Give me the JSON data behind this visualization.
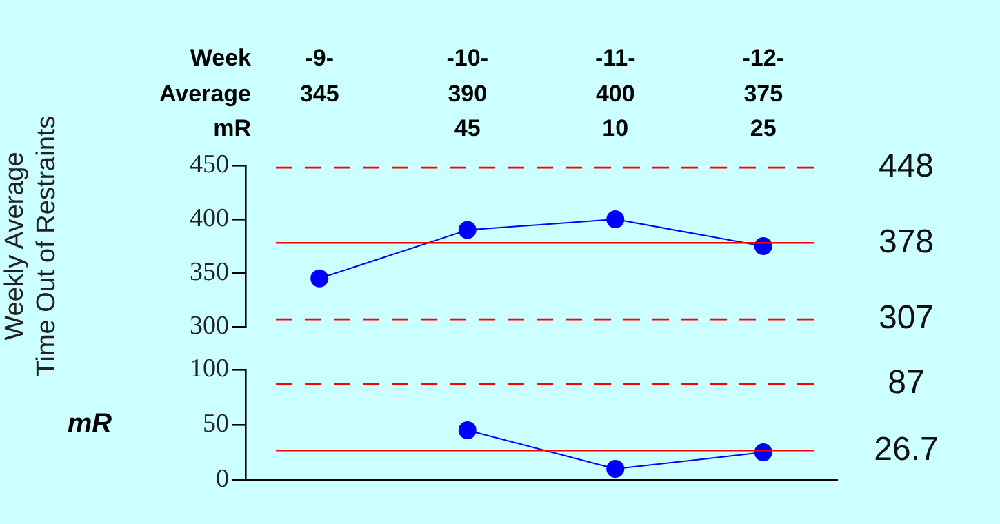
{
  "chart_data": [
    {
      "type": "line",
      "xlabel": "Week",
      "ylabel": "Weekly Average\nTime Out of Restraints",
      "annotations": [
        "Average"
      ],
      "categories": [
        "-9-",
        "-10-",
        "-11-",
        "-12-"
      ],
      "series": [
        {
          "color": "#0000ff",
          "values": [
            345,
            390,
            400,
            375
          ]
        }
      ],
      "ylim": [
        300,
        450
      ],
      "yticks": [
        300,
        350,
        400,
        450
      ],
      "grid": false,
      "legend": false,
      "marker": "circle",
      "line_style": "solid",
      "data_labels": true,
      "ref_lines": [
        {
          "axis": "y",
          "value": 448,
          "label": "448",
          "color": "#ff0000",
          "line_style": "dashed"
        },
        {
          "axis": "y",
          "value": 378,
          "label": "378",
          "color": "#ff0000",
          "line_style": "solid"
        },
        {
          "axis": "y",
          "value": 307,
          "label": "307",
          "color": "#ff0000",
          "line_style": "dashed"
        }
      ]
    },
    {
      "type": "line",
      "ylabel": "mR",
      "annotations": [
        "mR"
      ],
      "categories": [
        null,
        null,
        null,
        null
      ],
      "series": [
        {
          "color": "#0000ff",
          "values": [
            null,
            45,
            10,
            25
          ]
        }
      ],
      "ylim": [
        0,
        100
      ],
      "yticks": [
        0,
        50,
        100
      ],
      "grid": false,
      "legend": false,
      "marker": "circle",
      "line_style": "solid",
      "data_labels": true,
      "tick_labels": "y",
      "ref_lines": [
        {
          "axis": "y",
          "value": 87,
          "label": "87",
          "color": "#ff0000",
          "line_style": "dashed"
        },
        {
          "axis": "y",
          "value": 26.7,
          "label": "26.7",
          "color": "#ff0000",
          "line_style": "solid"
        }
      ]
    }
  ]
}
